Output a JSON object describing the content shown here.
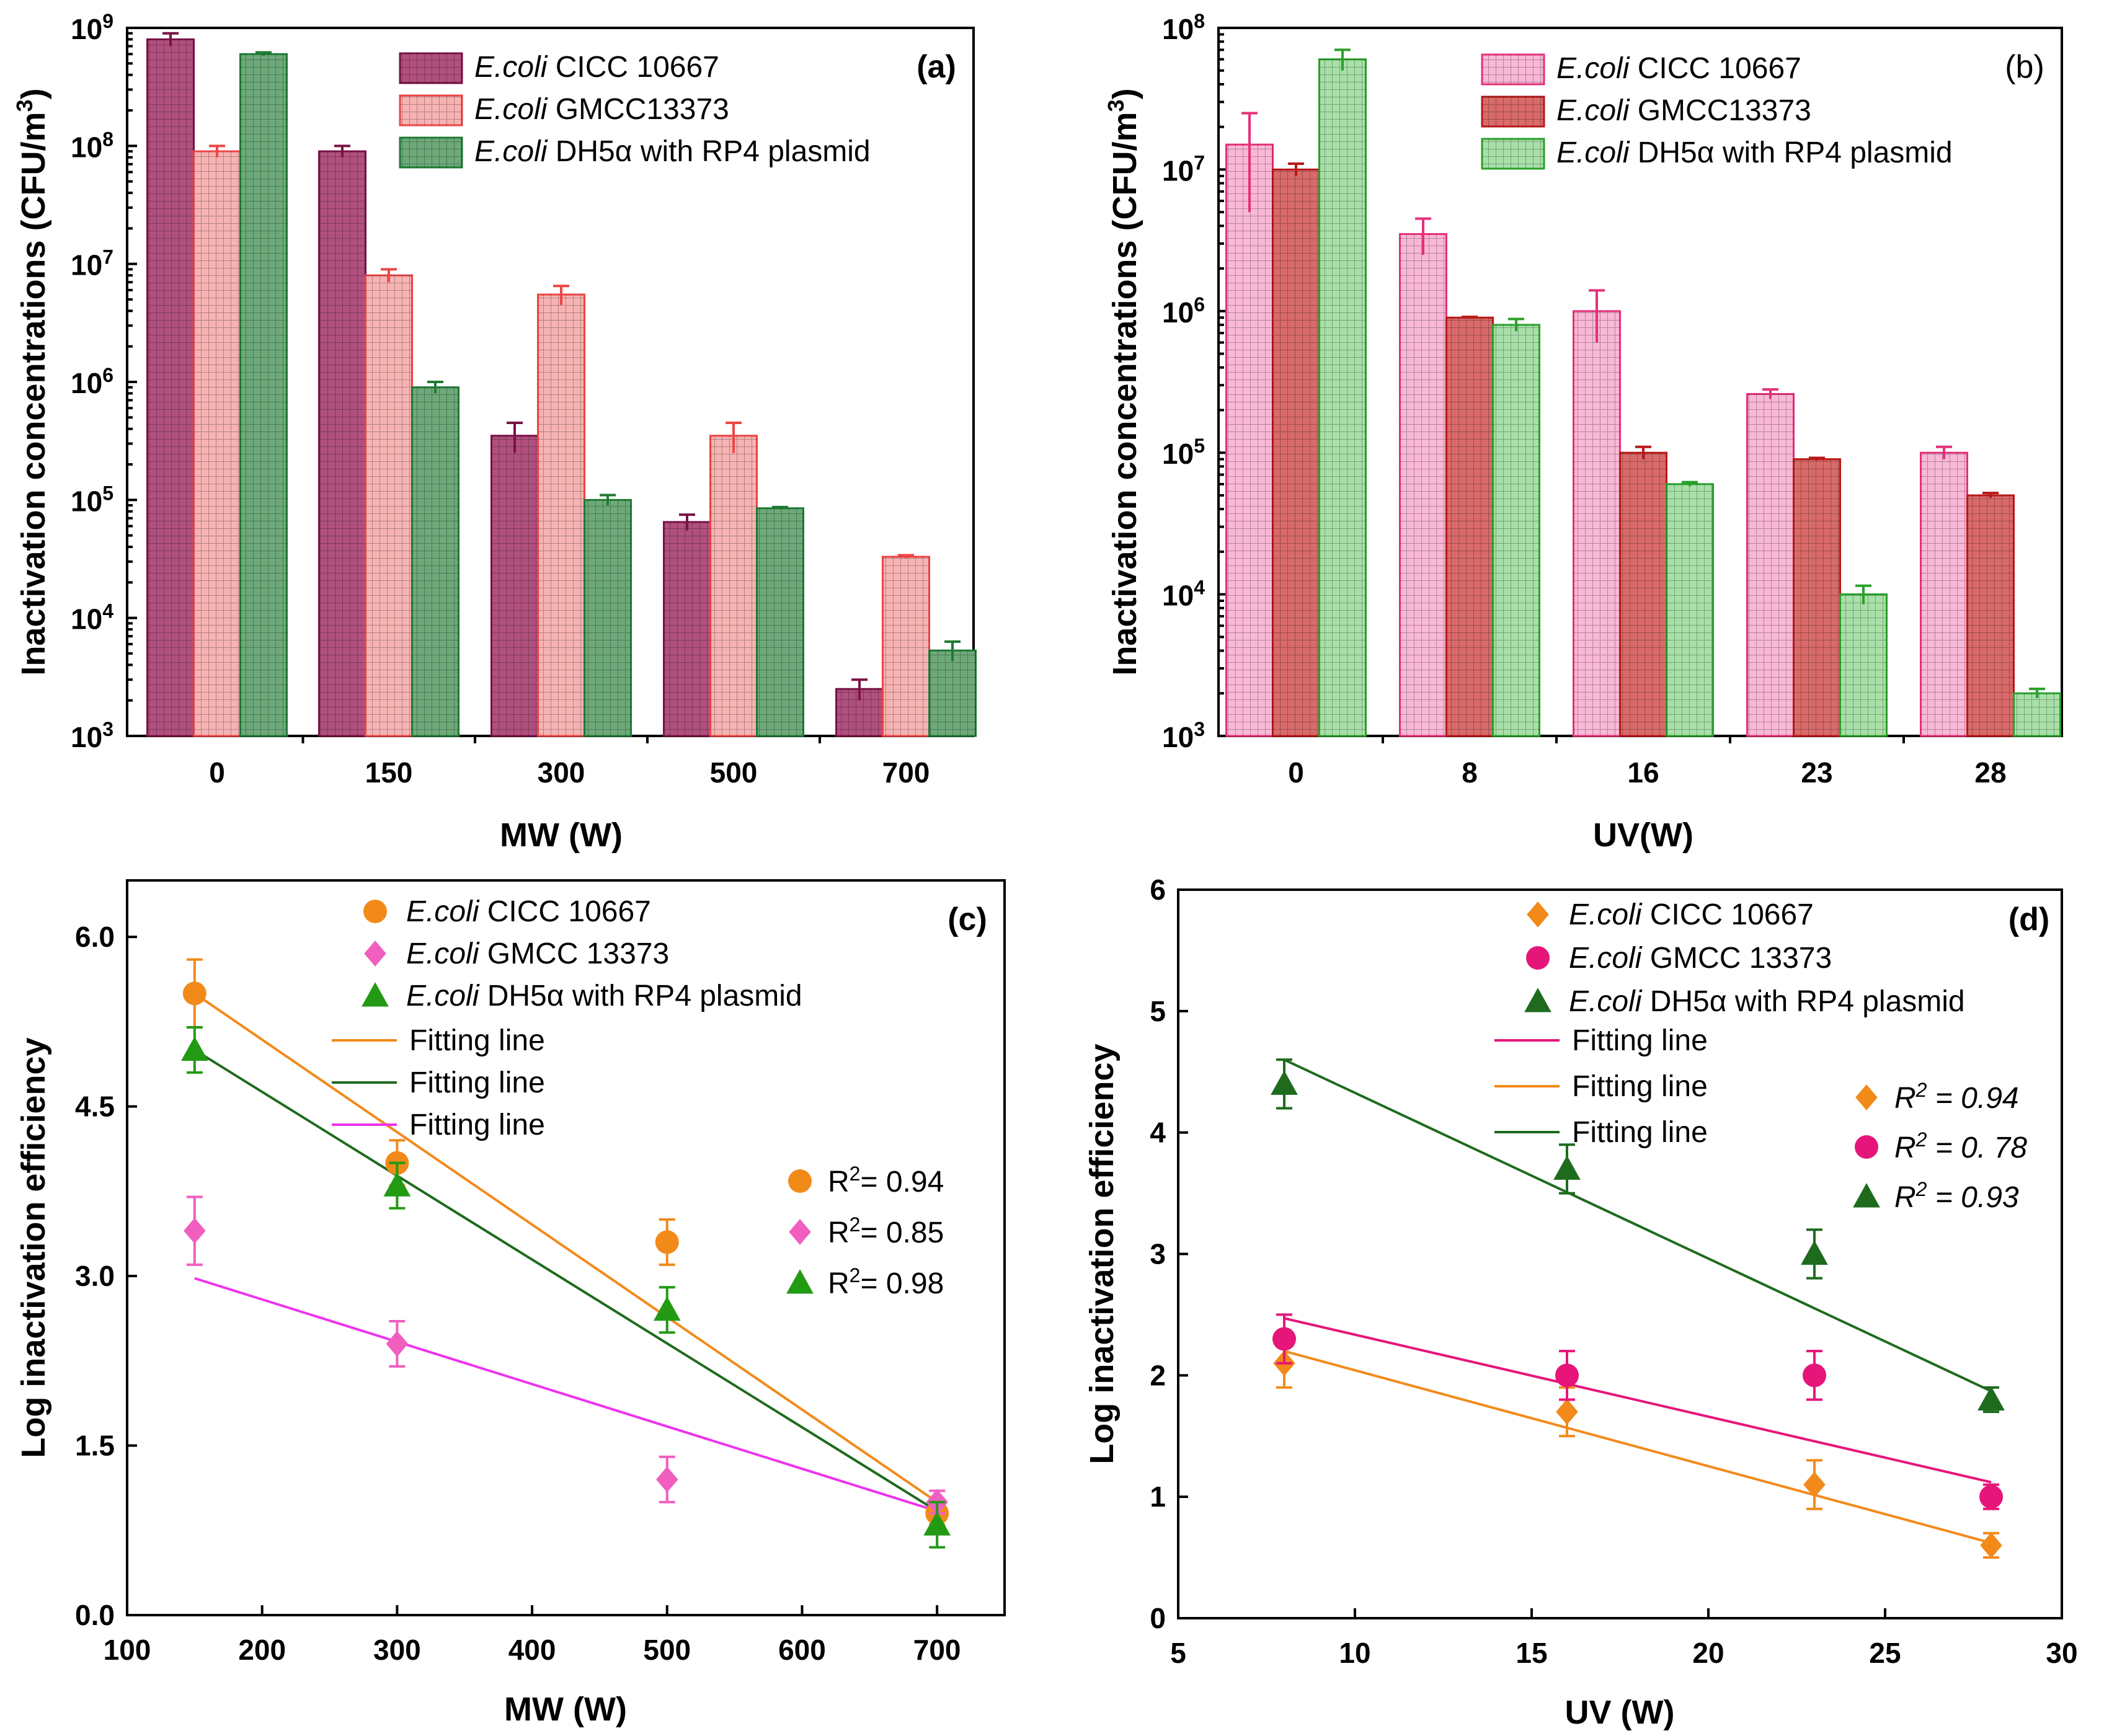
{
  "chart_data": [
    {
      "id": "a",
      "type": "bar",
      "panel_label": "(a)",
      "panel_label_bold": true,
      "xlabel": "MW (W)",
      "ylabel": "Inactivation concentrations (CFU/m",
      "ylabel_sup": "3",
      "ylabel_end": ")",
      "yscale": "log",
      "ylim": [
        1000,
        1000000000
      ],
      "yticks": [
        {
          "base": "10",
          "exp": "3",
          "value": 1000
        },
        {
          "base": "10",
          "exp": "4",
          "value": 10000
        },
        {
          "base": "10",
          "exp": "5",
          "value": 100000
        },
        {
          "base": "10",
          "exp": "6",
          "value": 1000000
        },
        {
          "base": "10",
          "exp": "7",
          "value": 10000000
        },
        {
          "base": "10",
          "exp": "8",
          "value": 100000000
        },
        {
          "base": "10",
          "exp": "9",
          "value": 1000000000
        }
      ],
      "categories": [
        "0",
        "150",
        "300",
        "500",
        "700"
      ],
      "series": [
        {
          "name_italic": "E.coli",
          "name_rest": " CICC 10667",
          "fill": "#b0507e",
          "stroke": "#7a1245",
          "values": [
            800000000,
            90000000,
            350000,
            65000,
            2500
          ],
          "errors": [
            100000000,
            10000000,
            100000,
            10000,
            500
          ]
        },
        {
          "name_italic": "E.coli",
          "name_rest": " GMCC13373",
          "fill": "#f7b3b3",
          "stroke": "#ee4444",
          "values": [
            90000000,
            8000000,
            5500000,
            350000,
            33000
          ],
          "errors": [
            10000000,
            1000000,
            1000000,
            100000,
            1000
          ]
        },
        {
          "name_italic": "E.coli",
          "name_rest": " DH5α with RP4 plasmid",
          "fill": "#6ea97a",
          "stroke": "#1e7a33",
          "values": [
            600000000,
            900000,
            100000,
            85000,
            5300
          ],
          "errors": [
            20000000,
            100000,
            10000,
            2000,
            1000
          ]
        }
      ]
    },
    {
      "id": "b",
      "type": "bar",
      "panel_label": "(b)",
      "panel_label_bold": false,
      "xlabel": "UV(W)",
      "ylabel": "Inactivation concentrations (CFU/m",
      "ylabel_sup": "3",
      "ylabel_end": ")",
      "yscale": "log",
      "ylim": [
        1000,
        100000000
      ],
      "yticks": [
        {
          "base": "10",
          "exp": "3",
          "value": 1000
        },
        {
          "base": "10",
          "exp": "4",
          "value": 10000
        },
        {
          "base": "10",
          "exp": "5",
          "value": 100000
        },
        {
          "base": "10",
          "exp": "6",
          "value": 1000000
        },
        {
          "base": "10",
          "exp": "7",
          "value": 10000000
        },
        {
          "base": "10",
          "exp": "8",
          "value": 100000000
        }
      ],
      "categories": [
        "0",
        "8",
        "16",
        "23",
        "28"
      ],
      "series": [
        {
          "name_italic": "E.coli",
          "name_rest": " CICC 10667",
          "fill": "#f9b8d6",
          "stroke": "#e6307a",
          "values": [
            15000000,
            3500000,
            1000000,
            260000,
            100000
          ],
          "errors": [
            10000000,
            1000000,
            400000,
            20000,
            10000
          ]
        },
        {
          "name_italic": "E.coli",
          "name_rest": " GMCC13373",
          "fill": "#d96a6a",
          "stroke": "#b81818",
          "values": [
            10000000,
            900000,
            100000,
            90000,
            50000
          ],
          "errors": [
            1000000,
            10000,
            10000,
            2000,
            2000
          ]
        },
        {
          "name_italic": "E.coli",
          "name_rest": " DH5α with RP4 plasmid",
          "fill": "#a8e0a8",
          "stroke": "#2aa02a",
          "values": [
            60000000,
            800000,
            60000,
            10000,
            2000
          ],
          "errors": [
            10000000,
            80000,
            2000,
            1500,
            150
          ]
        }
      ]
    },
    {
      "id": "c",
      "type": "scatter",
      "panel_label": "(c)",
      "xlabel": "MW (W)",
      "ylabel": "Log inactivation efficiency",
      "xlim": [
        100,
        750
      ],
      "ylim": [
        0,
        6.5
      ],
      "xticks": [
        100,
        200,
        300,
        400,
        500,
        600,
        700
      ],
      "yticks": [
        "0.0",
        "1.5",
        "3.0",
        "4.5",
        "6.0"
      ],
      "series": [
        {
          "name_italic": "E.coli",
          "name_rest": " CICC 10667",
          "marker": "circle",
          "color": "#f28a1a",
          "x": [
            150,
            300,
            500,
            700
          ],
          "y": [
            5.5,
            4.0,
            3.3,
            0.9
          ],
          "errors": [
            0.3,
            0.2,
            0.2,
            0.1
          ],
          "r2": "0.94"
        },
        {
          "name_italic": "E.coli",
          "name_rest": " GMCC 13373",
          "marker": "diamond",
          "color": "#f05fc0",
          "x": [
            150,
            300,
            500,
            700
          ],
          "y": [
            3.4,
            2.4,
            1.2,
            1.0
          ],
          "errors": [
            0.3,
            0.2,
            0.2,
            0.1
          ],
          "r2": "0.85"
        },
        {
          "name_italic": "E.coli",
          "name_rest": " DH5α with RP4 plasmid",
          "marker": "triangle",
          "color": "#229a14",
          "x": [
            150,
            300,
            500,
            700
          ],
          "y": [
            5.0,
            3.8,
            2.7,
            0.8
          ],
          "errors": [
            0.2,
            0.2,
            0.2,
            0.2
          ],
          "r2": "0.98"
        }
      ],
      "fit_lines": [
        {
          "label": "Fitting line",
          "color": "#f28a1a",
          "x": [
            150,
            700
          ],
          "y": [
            5.5,
            1.0
          ]
        },
        {
          "label": "Fitting line",
          "color": "#1e6b1e",
          "x": [
            150,
            700
          ],
          "y": [
            5.0,
            0.92
          ]
        },
        {
          "label": "Fitting line",
          "color": "#ee33ee",
          "x": [
            150,
            700
          ],
          "y": [
            2.98,
            0.92
          ]
        }
      ],
      "r2_prefix": "R",
      "r2_sup": "2",
      "r2_suffix": "= "
    },
    {
      "id": "d",
      "type": "scatter",
      "panel_label": "(d)",
      "xlabel": "UV (W)",
      "ylabel": "Log inactivation efficiency",
      "xlim": [
        5,
        30
      ],
      "ylim": [
        0,
        6
      ],
      "xticks": [
        5,
        10,
        15,
        20,
        25,
        30
      ],
      "yticks": [
        "0",
        "1",
        "2",
        "3",
        "4",
        "5",
        "6"
      ],
      "series": [
        {
          "name_italic": "E.coli",
          "name_rest": " CICC 10667",
          "marker": "diamond",
          "color": "#f28a1a",
          "x": [
            8,
            16,
            23,
            28
          ],
          "y": [
            2.1,
            1.7,
            1.1,
            0.6
          ],
          "errors": [
            0.2,
            0.2,
            0.2,
            0.1
          ],
          "r2": "0.94"
        },
        {
          "name_italic": "E.coli",
          "name_rest": " GMCC 13373",
          "marker": "circle",
          "color": "#e6157a",
          "x": [
            8,
            16,
            23,
            28
          ],
          "y": [
            2.3,
            2.0,
            2.0,
            1.0
          ],
          "errors": [
            0.2,
            0.2,
            0.2,
            0.1
          ],
          "r2": "0. 78"
        },
        {
          "name_italic": "E.coli",
          "name_rest": " DH5α with RP4 plasmid",
          "marker": "triangle",
          "color": "#1e6b1e",
          "x": [
            8,
            16,
            23,
            28
          ],
          "y": [
            4.4,
            3.7,
            3.0,
            1.8
          ],
          "errors": [
            0.2,
            0.2,
            0.2,
            0.1
          ],
          "r2": "0.93"
        }
      ],
      "fit_lines": [
        {
          "label": "Fitting line",
          "color": "#e6157a",
          "x": [
            8,
            28
          ],
          "y": [
            2.47,
            1.12
          ]
        },
        {
          "label": "Fitting line",
          "color": "#f28a1a",
          "x": [
            8,
            28
          ],
          "y": [
            2.2,
            0.62
          ]
        },
        {
          "label": "Fitting line",
          "color": "#1e6b1e",
          "x": [
            8,
            28
          ],
          "y": [
            4.6,
            1.87
          ]
        }
      ],
      "fit_line_display": [
        "Fitting line",
        "Fitting line",
        "Fitting line"
      ],
      "r2_prefix": "R",
      "r2_sup": "2",
      "r2_suffix": " = "
    }
  ]
}
